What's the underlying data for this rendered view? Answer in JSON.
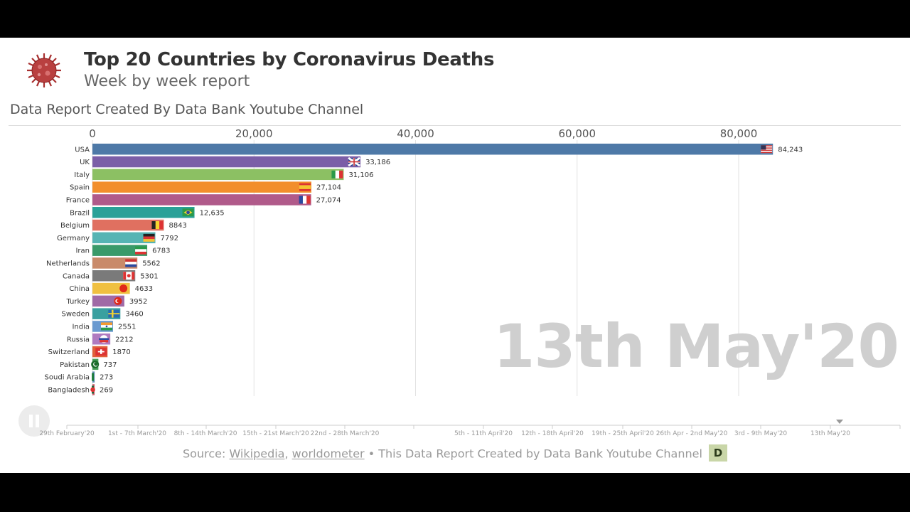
{
  "header": {
    "title": "Top 20 Countries by Coronavirus Deaths",
    "subtitle": "Week by week report",
    "credit": "Data Report Created By Data Bank Youtube Channel"
  },
  "current_date": "13th May'20",
  "source": {
    "prefix": "Source:",
    "link1": "Wikipedia",
    "sep": ",",
    "link2": "worldometer",
    "suffix": "• This Data Report Created by Data Bank Youtube Channel",
    "logo_letter": "D"
  },
  "timeline": {
    "labels": [
      "29th February'20",
      "1st - 7th March'20",
      "8th - 14th March'20",
      "15th - 21st March'20",
      "22nd - 28th March'20",
      "5th - 11th April'20",
      "12th - 18th April'20",
      "19th - 25th April'20",
      "26th Apr - 2nd May'20",
      "3rd - 9th May'20",
      "13th May'20"
    ],
    "current_index": 10
  },
  "colors": {
    "USA": "#4e79a7",
    "UK": "#7b5ea7",
    "Italy": "#8cc063",
    "Spain": "#f28e2b",
    "France": "#b05a8a",
    "Brazil": "#2aa198",
    "Belgium": "#e07060",
    "Germany": "#56b4b4",
    "Iran": "#3a9a6a",
    "Netherlands": "#c98a6a",
    "Canada": "#7a7a7a",
    "China": "#f0c040",
    "Turkey": "#a06aa6",
    "Sweden": "#3aa0a0",
    "India": "#6a9ad0",
    "Russia": "#b07ac0",
    "Switzerland": "#e0603a",
    "Pakistan": "#4aa05a",
    "Soudi Arabia": "#5a8ab0",
    "Bangladesh": "#d05a6a"
  },
  "chart_data": {
    "type": "bar",
    "orientation": "horizontal",
    "title": "Top 20 Countries by Coronavirus Deaths",
    "subtitle": "Week by week report",
    "xlim": [
      0,
      92000
    ],
    "x_ticks": [
      0,
      20000,
      40000,
      60000,
      80000
    ],
    "x_tick_labels": [
      "0",
      "20,000",
      "40,000",
      "60,000",
      "80,000"
    ],
    "grid": true,
    "categories": [
      "USA",
      "UK",
      "Italy",
      "Spain",
      "France",
      "Brazil",
      "Belgium",
      "Germany",
      "Iran",
      "Netherlands",
      "Canada",
      "China",
      "Turkey",
      "Sweden",
      "India",
      "Russia",
      "Switzerland",
      "Pakistan",
      "Soudi Arabia",
      "Bangladesh"
    ],
    "values": [
      84243,
      33186,
      31106,
      27104,
      27074,
      12635,
      8843,
      7792,
      6783,
      5562,
      5301,
      4633,
      3952,
      3460,
      2551,
      2212,
      1870,
      737,
      273,
      269
    ],
    "value_labels": [
      "84,243",
      "33,186",
      "31,106",
      "27,104",
      "27,074",
      "12,635",
      "8843",
      "7792",
      "6783",
      "5562",
      "5301",
      "4633",
      "3952",
      "3460",
      "2551",
      "2212",
      "1870",
      "737",
      "273",
      "269"
    ],
    "flags": [
      "usa-flag-icon",
      "uk-flag-icon",
      "italy-flag-icon",
      "spain-flag-icon",
      "france-flag-icon",
      "brazil-flag-icon",
      "belgium-flag-icon",
      "germany-flag-icon",
      "iran-flag-icon",
      "netherlands-flag-icon",
      "canada-flag-icon",
      "china-flag-icon",
      "turkey-flag-icon",
      "sweden-flag-icon",
      "india-flag-icon",
      "russia-flag-icon",
      "switzerland-flag-icon",
      "pakistan-flag-icon",
      "saudi-arabia-flag-icon",
      "bangladesh-flag-icon"
    ]
  }
}
